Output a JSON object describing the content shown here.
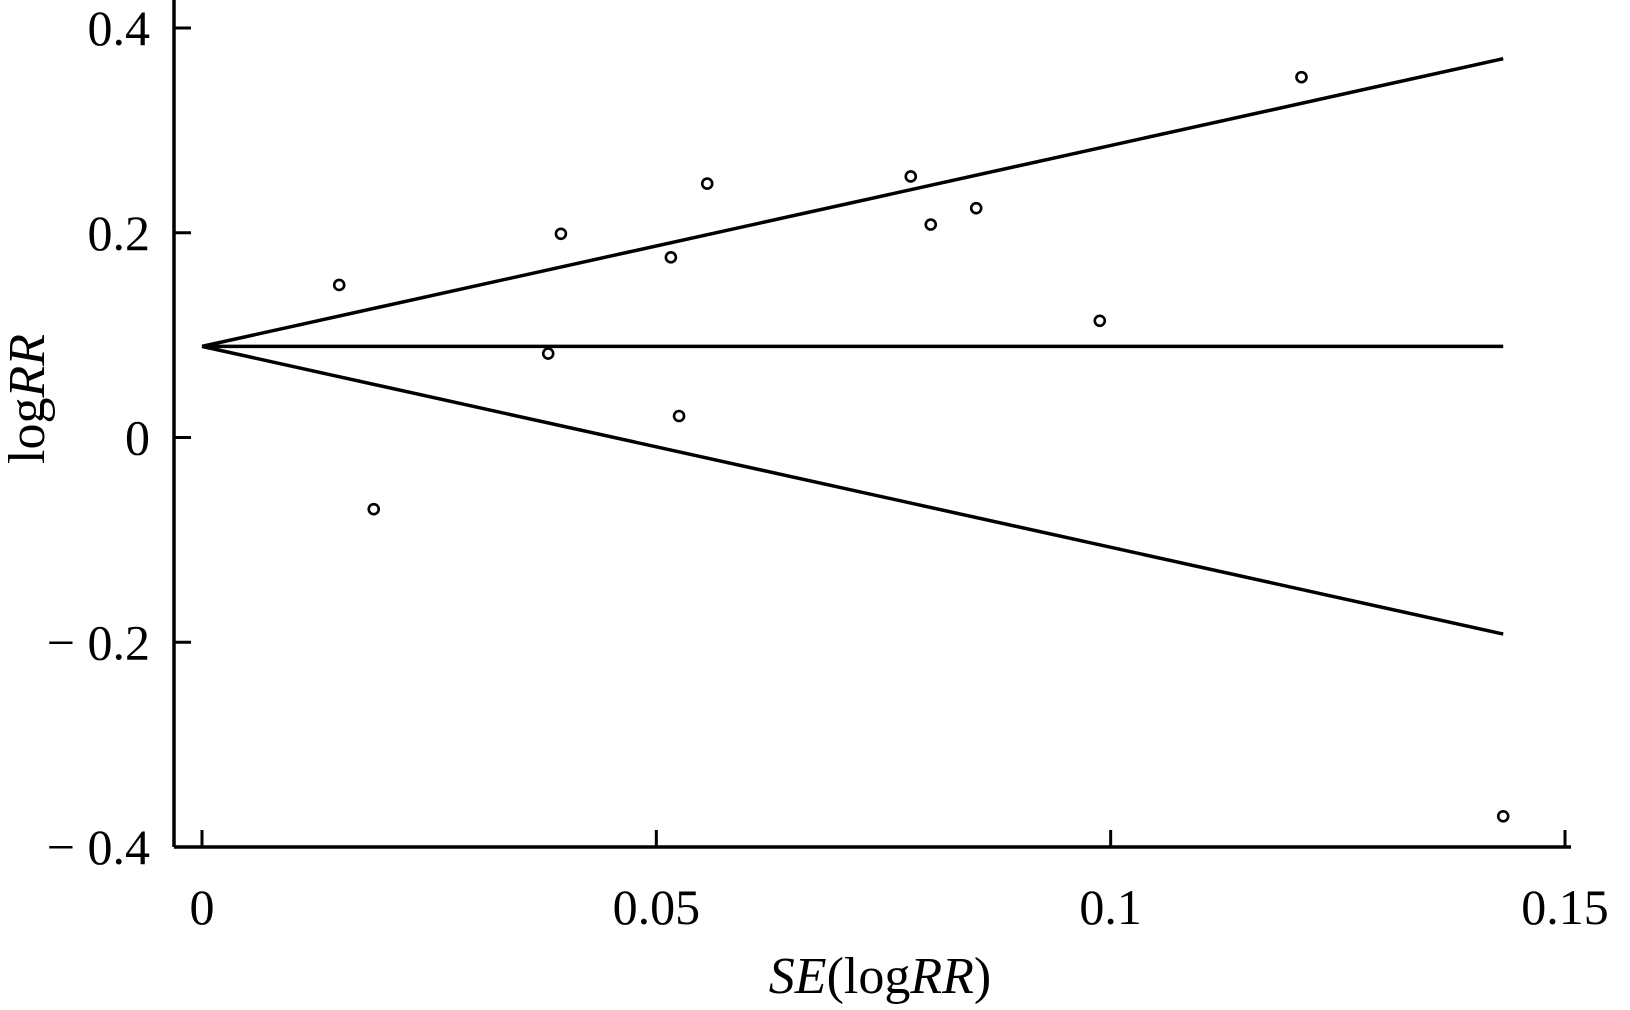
{
  "chart_data": {
    "type": "scatter",
    "title": "",
    "xlabel": {
      "italic": "SE",
      "open": "(log",
      "italic2": "RR",
      "close": ")"
    },
    "ylabel": {
      "plain": "log",
      "italic": "RR"
    },
    "xlim": [
      0,
      0.15
    ],
    "ylim": [
      -0.4,
      0.4
    ],
    "x_ticks": [
      {
        "value": 0,
        "label": "0"
      },
      {
        "value": 0.05,
        "label": "0.05"
      },
      {
        "value": 0.1,
        "label": "0.1"
      },
      {
        "value": 0.15,
        "label": "0.15"
      }
    ],
    "y_ticks": [
      {
        "value": 0.4,
        "label": "0.4"
      },
      {
        "value": 0.2,
        "label": "0.2"
      },
      {
        "value": 0,
        "label": "0"
      },
      {
        "value": -0.2,
        "label": "− 0.2"
      },
      {
        "value": -0.4,
        "label": "− 0.4"
      }
    ],
    "grid": false,
    "legend": "none",
    "points": [
      {
        "x": 0.0151,
        "y": 0.149
      },
      {
        "x": 0.0189,
        "y": -0.07
      },
      {
        "x": 0.0381,
        "y": 0.082
      },
      {
        "x": 0.0395,
        "y": 0.199
      },
      {
        "x": 0.0516,
        "y": 0.176
      },
      {
        "x": 0.0525,
        "y": 0.021
      },
      {
        "x": 0.0556,
        "y": 0.248
      },
      {
        "x": 0.078,
        "y": 0.255
      },
      {
        "x": 0.0802,
        "y": 0.208
      },
      {
        "x": 0.0852,
        "y": 0.224
      },
      {
        "x": 0.0988,
        "y": 0.114
      },
      {
        "x": 0.121,
        "y": 0.352
      },
      {
        "x": 0.1432,
        "y": -0.37
      }
    ],
    "lines": [
      {
        "name": "pooled estimate",
        "points": [
          [
            0,
            0.089
          ],
          [
            0.1432,
            0.089
          ]
        ]
      },
      {
        "name": "upper limit",
        "points": [
          [
            0,
            0.089
          ],
          [
            0.1432,
            0.37
          ]
        ]
      },
      {
        "name": "lower limit",
        "points": [
          [
            0,
            0.089
          ],
          [
            0.1432,
            -0.192
          ]
        ]
      }
    ],
    "colors": {
      "ink": "#000000",
      "background": "#ffffff"
    }
  }
}
